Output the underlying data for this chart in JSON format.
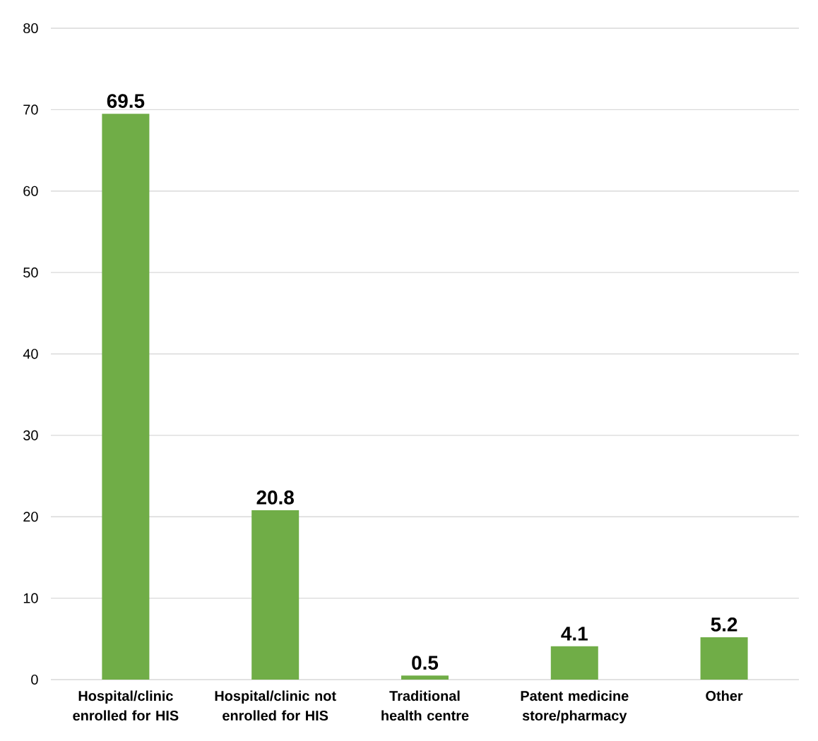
{
  "chart_data": {
    "type": "bar",
    "categories": [
      "Hospital/clinic enrolled for HIS",
      "Hospital/clinic not enrolled for HIS",
      "Traditional health centre",
      "Patent medicine store/pharmacy",
      "Other"
    ],
    "values": [
      69.5,
      20.8,
      0.5,
      4.1,
      5.2
    ],
    "color": "#70ad47",
    "ylim": [
      0,
      80
    ],
    "yticks": [
      0,
      10,
      20,
      30,
      40,
      50,
      60,
      70,
      80
    ],
    "grid": "y",
    "data_labels": true
  }
}
